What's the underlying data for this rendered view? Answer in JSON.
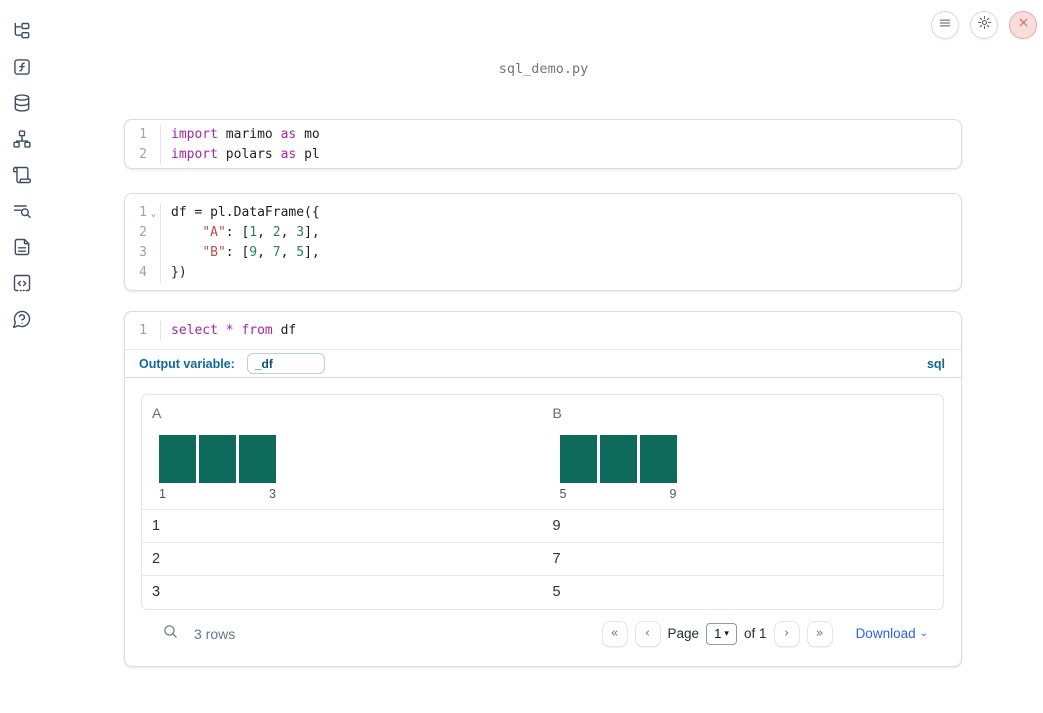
{
  "window": {
    "title": "sql_demo.py"
  },
  "topbar": {
    "buttons": [
      {
        "name": "menu",
        "icon": "hamburger-icon"
      },
      {
        "name": "settings",
        "icon": "gear-icon"
      },
      {
        "name": "shutdown",
        "icon": "close-icon"
      }
    ]
  },
  "sidebar": {
    "items": [
      {
        "name": "file-explorer",
        "icon": "file-tree-icon"
      },
      {
        "name": "variables",
        "icon": "function-square-icon"
      },
      {
        "name": "datasources",
        "icon": "database-icon"
      },
      {
        "name": "dependency-graph",
        "icon": "network-icon"
      },
      {
        "name": "logs",
        "icon": "scroll-icon"
      },
      {
        "name": "snippets",
        "icon": "list-search-icon"
      },
      {
        "name": "documentation",
        "icon": "file-text-icon"
      },
      {
        "name": "scratchpad",
        "icon": "code-square-icon"
      },
      {
        "name": "help-chat",
        "icon": "message-question-icon"
      }
    ]
  },
  "cells": [
    {
      "name": "imports-cell",
      "lines": [
        {
          "num": "1",
          "fold": false,
          "tokens": [
            [
              "kw",
              "import"
            ],
            [
              "pl",
              " marimo "
            ],
            [
              "kw",
              "as"
            ],
            [
              "pl",
              " mo"
            ]
          ]
        },
        {
          "num": "2",
          "fold": false,
          "tokens": [
            [
              "kw",
              "import"
            ],
            [
              "pl",
              " polars "
            ],
            [
              "kw",
              "as"
            ],
            [
              "pl",
              " pl"
            ]
          ]
        }
      ]
    },
    {
      "name": "dataframe-cell",
      "lines": [
        {
          "num": "1",
          "fold": true,
          "tokens": [
            [
              "pl",
              "df = pl.DataFrame({"
            ]
          ]
        },
        {
          "num": "2",
          "fold": false,
          "tokens": [
            [
              "pl",
              "    "
            ],
            [
              "str",
              "\"A\""
            ],
            [
              "pl",
              ": ["
            ],
            [
              "num",
              "1"
            ],
            [
              "pl",
              ", "
            ],
            [
              "num",
              "2"
            ],
            [
              "pl",
              ", "
            ],
            [
              "num",
              "3"
            ],
            [
              "pl",
              "],"
            ]
          ]
        },
        {
          "num": "3",
          "fold": false,
          "tokens": [
            [
              "pl",
              "    "
            ],
            [
              "str",
              "\"B\""
            ],
            [
              "pl",
              ": ["
            ],
            [
              "num",
              "9"
            ],
            [
              "pl",
              ", "
            ],
            [
              "num",
              "7"
            ],
            [
              "pl",
              ", "
            ],
            [
              "num",
              "5"
            ],
            [
              "pl",
              "],"
            ]
          ]
        },
        {
          "num": "4",
          "fold": false,
          "tokens": [
            [
              "pl",
              "})"
            ]
          ]
        }
      ]
    },
    {
      "name": "sql-cell",
      "lines": [
        {
          "num": "1",
          "fold": false,
          "tokens": [
            [
              "kw",
              "select"
            ],
            [
              "pl",
              " "
            ],
            [
              "op",
              "*"
            ],
            [
              "pl",
              " "
            ],
            [
              "kw",
              "from"
            ],
            [
              "pl",
              " df"
            ]
          ]
        }
      ]
    }
  ],
  "sql_cell": {
    "output_variable_label": "Output variable:",
    "output_variable_value": "_df",
    "language_badge": "sql"
  },
  "table": {
    "columns": [
      {
        "name": "A",
        "hist": {
          "bars": [
            1,
            1,
            1
          ],
          "min": "1",
          "max": "3"
        }
      },
      {
        "name": "B",
        "hist": {
          "bars": [
            1,
            1,
            1
          ],
          "min": "5",
          "max": "9"
        }
      }
    ],
    "rows": [
      [
        "1",
        "9"
      ],
      [
        "2",
        "7"
      ],
      [
        "3",
        "5"
      ]
    ],
    "footer": {
      "row_count": "3 rows",
      "pagination": {
        "first": "«",
        "prev": "‹",
        "page_label": "Page",
        "page_value": "1",
        "of_label": "of 1",
        "next": "›",
        "last": "»"
      },
      "download_label": "Download"
    }
  },
  "colors": {
    "accent_green": "#0e6a5b",
    "keyword": "#a626a4",
    "string": "#b0534b",
    "number": "#2b8157",
    "label_blue": "#10699b",
    "download_blue": "#2563eb"
  }
}
